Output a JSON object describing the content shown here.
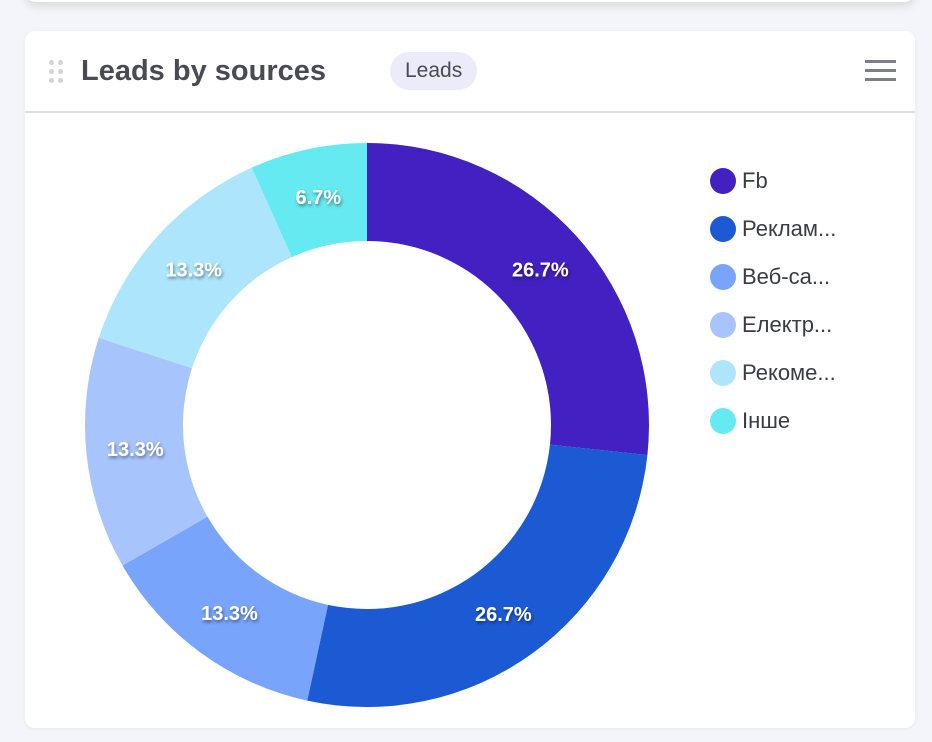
{
  "card": {
    "title": "Leads by sources",
    "badge": "Leads"
  },
  "chart_data": {
    "type": "pie",
    "variant": "donut",
    "title": "Leads by sources",
    "categories": [
      "Fb",
      "Реклам...",
      "Веб-са...",
      "Електр...",
      "Рекоме...",
      "Інше"
    ],
    "values": [
      26.7,
      26.7,
      13.3,
      13.3,
      13.3,
      6.7
    ],
    "labels": [
      "26.7%",
      "26.7%",
      "13.3%",
      "13.3%",
      "13.3%",
      "6.7%"
    ],
    "colors": [
      "#4320c2",
      "#1c5ad4",
      "#78a4fc",
      "#a8c4fd",
      "#ade6fc",
      "#64eaf0"
    ],
    "legend_position": "right"
  }
}
